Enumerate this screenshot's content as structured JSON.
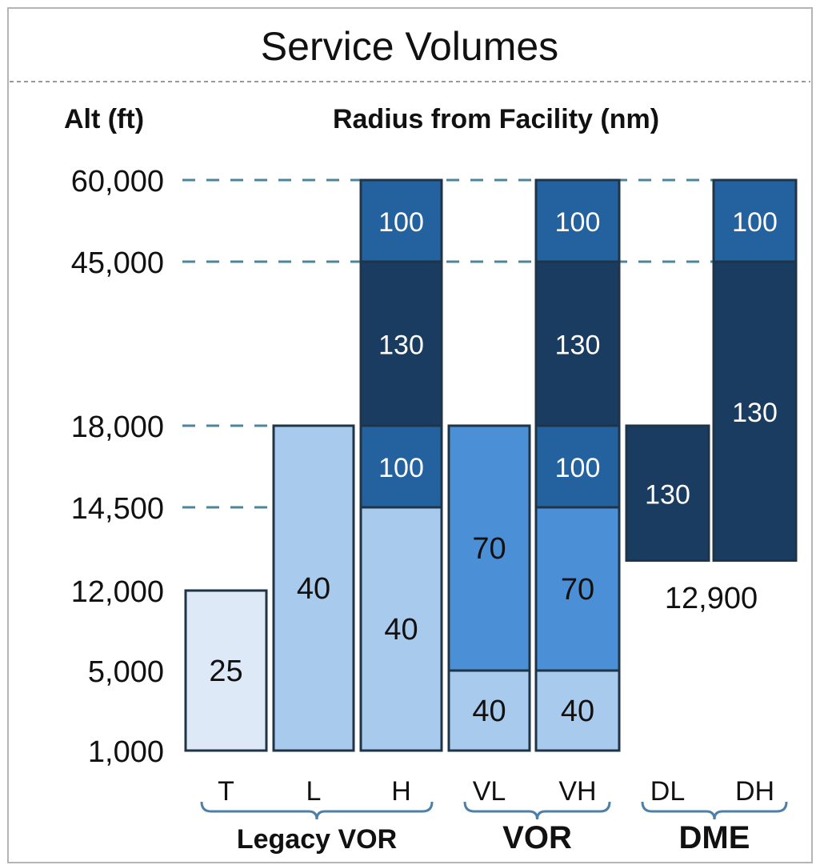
{
  "chart_data": {
    "type": "bar",
    "subtype": "floating-stacked",
    "title": "Service Volumes",
    "ylabel": "Alt (ft)",
    "xlabel": "Radius from Facility (nm)",
    "y_ticks": [
      1000,
      5000,
      12000,
      14500,
      18000,
      45000,
      60000
    ],
    "y_tick_labels": [
      "1,000",
      "5,000",
      "12,000",
      "14,500",
      "18,000",
      "45,000",
      "60,000"
    ],
    "y_scale": "ordinal-spaced",
    "categories": [
      "T",
      "L",
      "H",
      "VL",
      "VH",
      "DL",
      "DH"
    ],
    "groups": [
      {
        "label": "Legacy VOR",
        "members": [
          "T",
          "L",
          "H"
        ]
      },
      {
        "label": "VOR",
        "members": [
          "VL",
          "VH"
        ]
      },
      {
        "label": "DME",
        "members": [
          "DL",
          "DH"
        ]
      }
    ],
    "bars": [
      {
        "category": "T",
        "segments": [
          {
            "from": 1000,
            "to": 12000,
            "radius_nm": 25,
            "shade": "lightest"
          }
        ]
      },
      {
        "category": "L",
        "segments": [
          {
            "from": 1000,
            "to": 18000,
            "radius_nm": 40,
            "shade": "light"
          }
        ]
      },
      {
        "category": "H",
        "segments": [
          {
            "from": 1000,
            "to": 14500,
            "radius_nm": 40,
            "shade": "light"
          },
          {
            "from": 14500,
            "to": 18000,
            "radius_nm": 100,
            "shade": "medium-dark"
          },
          {
            "from": 18000,
            "to": 45000,
            "radius_nm": 130,
            "shade": "dark"
          },
          {
            "from": 45000,
            "to": 60000,
            "radius_nm": 100,
            "shade": "medium-dark"
          }
        ]
      },
      {
        "category": "VL",
        "segments": [
          {
            "from": 1000,
            "to": 5000,
            "radius_nm": 40,
            "shade": "light"
          },
          {
            "from": 5000,
            "to": 18000,
            "radius_nm": 70,
            "shade": "medium"
          }
        ]
      },
      {
        "category": "VH",
        "segments": [
          {
            "from": 1000,
            "to": 5000,
            "radius_nm": 40,
            "shade": "light"
          },
          {
            "from": 5000,
            "to": 14500,
            "radius_nm": 70,
            "shade": "medium"
          },
          {
            "from": 14500,
            "to": 18000,
            "radius_nm": 100,
            "shade": "medium-dark"
          },
          {
            "from": 18000,
            "to": 45000,
            "radius_nm": 130,
            "shade": "dark"
          },
          {
            "from": 45000,
            "to": 60000,
            "radius_nm": 100,
            "shade": "medium-dark"
          }
        ]
      },
      {
        "category": "DL",
        "segments": [
          {
            "from": 12900,
            "to": 18000,
            "radius_nm": 130,
            "shade": "dark"
          }
        ]
      },
      {
        "category": "DH",
        "segments": [
          {
            "from": 12900,
            "to": 45000,
            "radius_nm": 130,
            "shade": "dark"
          },
          {
            "from": 45000,
            "to": 60000,
            "radius_nm": 100,
            "shade": "medium-dark"
          }
        ]
      }
    ],
    "annotations": [
      {
        "text": "12,900",
        "value": 12900,
        "under": [
          "DL",
          "DH"
        ]
      }
    ],
    "grid": "dashed reference lines at 14,500 / 18,000 / 45,000 / 60,000",
    "colors": {
      "lightest": "#dde9f6",
      "light": "#a8caec",
      "medium": "#4b90d6",
      "medium-dark": "#23629f",
      "dark": "#1a3c60",
      "outline": "#1f3447",
      "dash": "#4d8599",
      "brace": "#4d7fa8"
    }
  }
}
